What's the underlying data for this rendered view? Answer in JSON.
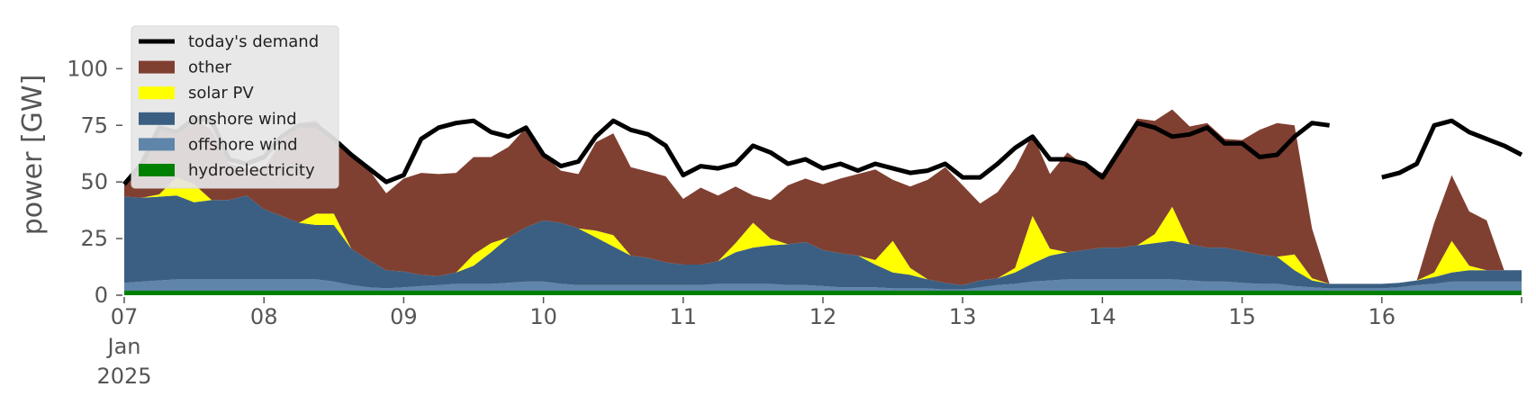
{
  "chart_data": {
    "type": "area",
    "ylabel": "power [GW]",
    "ylim": [
      0,
      120
    ],
    "xlim": [
      "2025-01-07",
      "2025-01-17"
    ],
    "y_ticks": [
      0,
      25,
      50,
      75,
      100
    ],
    "x_ticks": [
      {
        "date": "2025-01-07",
        "lines": [
          "07",
          "Jan",
          "2025"
        ]
      },
      {
        "date": "2025-01-08",
        "lines": [
          "08"
        ]
      },
      {
        "date": "2025-01-09",
        "lines": [
          "09"
        ]
      },
      {
        "date": "2025-01-10",
        "lines": [
          "10"
        ]
      },
      {
        "date": "2025-01-11",
        "lines": [
          "11"
        ]
      },
      {
        "date": "2025-01-12",
        "lines": [
          "12"
        ]
      },
      {
        "date": "2025-01-13",
        "lines": [
          "13"
        ]
      },
      {
        "date": "2025-01-14",
        "lines": [
          "14"
        ]
      },
      {
        "date": "2025-01-15",
        "lines": [
          "15"
        ]
      },
      {
        "date": "2025-01-16",
        "lines": [
          "16"
        ]
      }
    ],
    "grid": false,
    "legend_position": "top-left",
    "x": [
      "2025-01-07 00:00",
      "2025-01-07 03:00",
      "2025-01-07 06:00",
      "2025-01-07 09:00",
      "2025-01-07 12:00",
      "2025-01-07 15:00",
      "2025-01-07 18:00",
      "2025-01-07 21:00",
      "2025-01-08 00:00",
      "2025-01-08 03:00",
      "2025-01-08 06:00",
      "2025-01-08 09:00",
      "2025-01-08 12:00",
      "2025-01-08 15:00",
      "2025-01-08 18:00",
      "2025-01-08 21:00",
      "2025-01-09 00:00",
      "2025-01-09 03:00",
      "2025-01-09 06:00",
      "2025-01-09 09:00",
      "2025-01-09 12:00",
      "2025-01-09 15:00",
      "2025-01-09 18:00",
      "2025-01-09 21:00",
      "2025-01-10 00:00",
      "2025-01-10 03:00",
      "2025-01-10 06:00",
      "2025-01-10 09:00",
      "2025-01-10 12:00",
      "2025-01-10 15:00",
      "2025-01-10 18:00",
      "2025-01-10 21:00",
      "2025-01-11 00:00",
      "2025-01-11 03:00",
      "2025-01-11 06:00",
      "2025-01-11 09:00",
      "2025-01-11 12:00",
      "2025-01-11 15:00",
      "2025-01-11 18:00",
      "2025-01-11 21:00",
      "2025-01-12 00:00",
      "2025-01-12 03:00",
      "2025-01-12 06:00",
      "2025-01-12 09:00",
      "2025-01-12 12:00",
      "2025-01-12 15:00",
      "2025-01-12 18:00",
      "2025-01-12 21:00",
      "2025-01-13 00:00",
      "2025-01-13 03:00",
      "2025-01-13 06:00",
      "2025-01-13 09:00",
      "2025-01-13 12:00",
      "2025-01-13 15:00",
      "2025-01-13 18:00",
      "2025-01-13 21:00",
      "2025-01-14 00:00",
      "2025-01-14 03:00",
      "2025-01-14 06:00",
      "2025-01-14 09:00",
      "2025-01-14 12:00",
      "2025-01-14 15:00",
      "2025-01-14 18:00",
      "2025-01-14 21:00",
      "2025-01-15 00:00",
      "2025-01-15 03:00",
      "2025-01-15 06:00",
      "2025-01-15 09:00",
      "2025-01-15 12:00",
      "2025-01-15 15:00",
      "2025-01-15 18:00",
      "2025-01-15 21:00",
      "2025-01-16 00:00",
      "2025-01-16 03:00",
      "2025-01-16 06:00",
      "2025-01-16 09:00",
      "2025-01-16 12:00",
      "2025-01-16 15:00",
      "2025-01-16 18:00",
      "2025-01-16 21:00",
      "2025-01-17 00:00"
    ],
    "series": [
      {
        "name": "hydroelectricity",
        "color": "#008000",
        "values": [
          2,
          2,
          2,
          2,
          2,
          2,
          2,
          2,
          2,
          2,
          2,
          2,
          2,
          2,
          2,
          2,
          2,
          2,
          2,
          2,
          2,
          2,
          2,
          2,
          2,
          2,
          2,
          2,
          2,
          2,
          2,
          2,
          2,
          2,
          2,
          2,
          2,
          2,
          2,
          2,
          2,
          2,
          2,
          2,
          2,
          2,
          2,
          2,
          2,
          2,
          2,
          2,
          2,
          2,
          2,
          2,
          2,
          2,
          2,
          2,
          2,
          2,
          2,
          2,
          2,
          2,
          2,
          2,
          2,
          2,
          2,
          2,
          2,
          2,
          2,
          2,
          2,
          2,
          2,
          2,
          2
        ]
      },
      {
        "name": "offshore wind",
        "color": "#5f85ab",
        "values": [
          3.5,
          4,
          4.5,
          5,
          5,
          5,
          5,
          5,
          5,
          5,
          5,
          5,
          4,
          2.5,
          1.5,
          1,
          1.5,
          2,
          2.5,
          3,
          3,
          3,
          3.5,
          4,
          4,
          3,
          2.5,
          2.5,
          2.5,
          2.5,
          2.5,
          2.5,
          2.5,
          2.5,
          3,
          3,
          3,
          3,
          2.5,
          2.5,
          2,
          1.5,
          1.5,
          1.5,
          1,
          1,
          1,
          0.5,
          0.5,
          1.5,
          2.5,
          3,
          4,
          4.5,
          5,
          5,
          5,
          5,
          5,
          5,
          5,
          4.5,
          4,
          4,
          3.5,
          3,
          3,
          2,
          1.5,
          1,
          1,
          1,
          1,
          1.5,
          2.5,
          3,
          4,
          4,
          4,
          4,
          4
        ]
      },
      {
        "name": "onshore wind",
        "color": "#3b5f82",
        "values": [
          38,
          37,
          37,
          37,
          34,
          35,
          35,
          37,
          31,
          28,
          25,
          24,
          25,
          16,
          12,
          8,
          7,
          5,
          4,
          5,
          8,
          14,
          20,
          24,
          27,
          27,
          25,
          21,
          17,
          13,
          12,
          10,
          9,
          9,
          10,
          14,
          16,
          17,
          18,
          19,
          16,
          15,
          14,
          10,
          7,
          6,
          4,
          3,
          2,
          3,
          3,
          5,
          8,
          11,
          12,
          13,
          14,
          14,
          15,
          16,
          17,
          16,
          15,
          15,
          14,
          13,
          12,
          7,
          3,
          2,
          2,
          2,
          2,
          2,
          2,
          3,
          4,
          5,
          5,
          5,
          5
        ]
      },
      {
        "name": "solar PV",
        "color": "#ffff00",
        "values": [
          0,
          0,
          1,
          8,
          8,
          0,
          0,
          0,
          0,
          0,
          0,
          5,
          5,
          0,
          0,
          0,
          0,
          0,
          0,
          0,
          5,
          4,
          0,
          0,
          0,
          0,
          0,
          3,
          5,
          0,
          0,
          0,
          0,
          0,
          0,
          4,
          11,
          3,
          0,
          0,
          0,
          0,
          0,
          2,
          14,
          3,
          0,
          0,
          0,
          0,
          0,
          2,
          21,
          3,
          0,
          0,
          0,
          0,
          0,
          4,
          15,
          0,
          0,
          0,
          0,
          0,
          0,
          7,
          1,
          0,
          0,
          0,
          0,
          0,
          0,
          2,
          14,
          2,
          0,
          0,
          0
        ]
      },
      {
        "name": "other",
        "color": "#804031",
        "values": [
          6,
          13,
          29,
          20,
          29,
          31,
          16,
          12,
          18,
          33,
          44,
          41,
          32,
          41,
          40,
          34,
          41,
          45,
          45,
          44,
          43,
          38,
          40,
          44,
          29,
          23,
          24,
          39,
          45,
          39,
          38,
          38,
          29,
          34,
          29,
          25,
          12,
          17,
          26,
          28,
          29,
          33,
          36,
          40,
          27,
          36,
          44,
          51,
          44,
          34,
          38,
          44,
          36,
          33,
          44,
          37,
          33,
          45,
          56,
          50,
          43,
          52,
          55,
          48,
          49,
          55,
          59,
          57,
          22,
          0,
          0,
          0,
          0,
          0,
          0,
          22,
          29,
          24,
          22,
          0,
          0
        ]
      },
      {
        "name": "today's demand",
        "color": "#000000",
        "type": "line",
        "values": [
          49,
          58,
          74,
          72,
          78,
          77,
          60,
          58,
          61,
          70,
          75,
          75,
          69,
          62,
          56,
          50,
          53,
          69,
          74,
          76,
          77,
          72,
          70,
          74,
          62,
          57,
          59,
          70,
          77,
          73,
          71,
          66,
          53,
          57,
          56,
          58,
          66,
          63,
          58,
          60,
          56,
          58,
          55,
          58,
          56,
          54,
          55,
          58,
          52,
          52,
          58,
          65,
          70,
          60,
          60,
          58,
          52,
          64,
          76,
          74,
          70,
          71,
          74,
          67,
          67,
          61,
          62,
          70,
          76,
          75,
          null,
          null,
          52,
          54,
          58,
          75,
          77,
          72,
          69,
          66,
          62
        ]
      }
    ]
  }
}
